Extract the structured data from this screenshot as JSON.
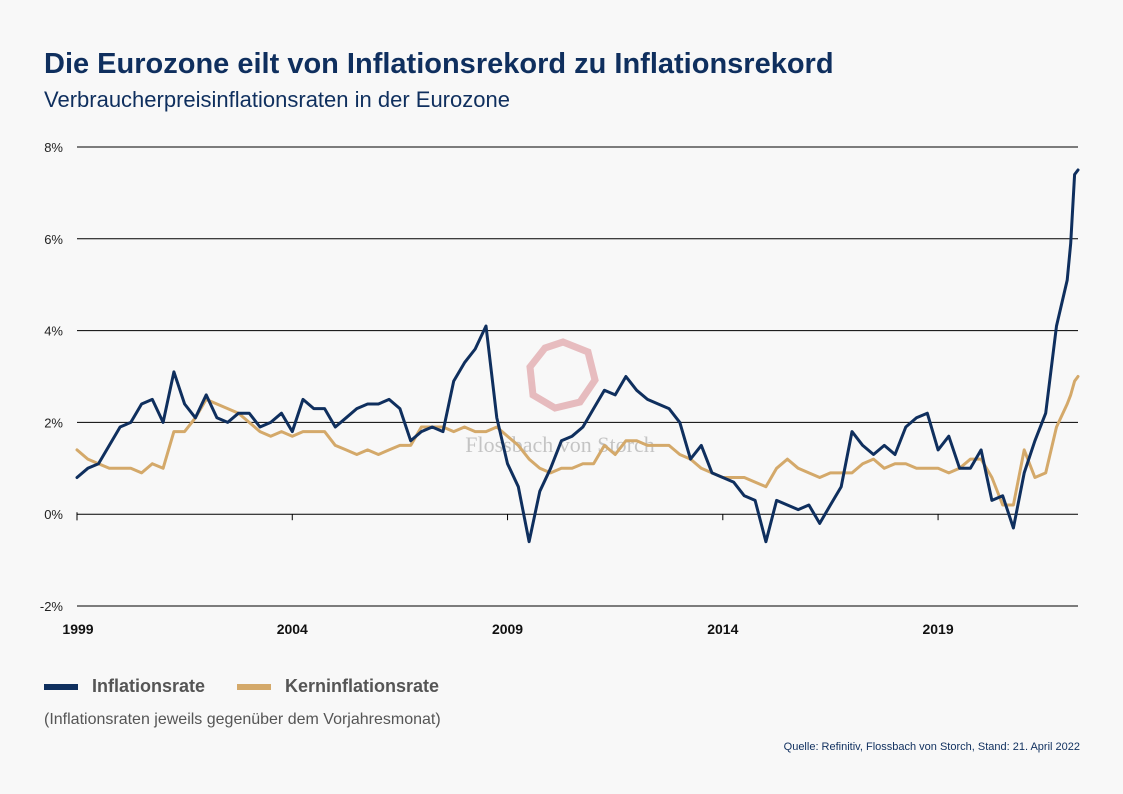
{
  "title": "Die Eurozone eilt von Inflationsrekord zu Inflationsrekord",
  "subtitle": "Verbraucherpreisinflationsraten in der Eurozone",
  "watermark": "Flossbach von Storch",
  "note": "(Inflationsraten jeweils gegenüber dem Vorjahresmonat)",
  "source": "Quelle: Refinitiv, Flossbach von Storch, Stand: 21. April 2022",
  "colors": {
    "headline": "#0f2f5e",
    "inflation": "#0f2f5e",
    "core": "#d4a96a",
    "grid": "#000000",
    "watermark": "#d98a8f"
  },
  "chart_data": {
    "type": "line",
    "title": "Verbraucherpreisinflationsraten in der Eurozone",
    "xlabel": "",
    "ylabel": "",
    "xlim": [
      1999.0,
      2022.25
    ],
    "ylim": [
      -2,
      8
    ],
    "yticks": [
      -2,
      0,
      2,
      4,
      6,
      8
    ],
    "ytick_labels": [
      "-2%",
      "0%",
      "2%",
      "4%",
      "6%",
      "8%"
    ],
    "xticks": [
      1999,
      2004,
      2009,
      2014,
      2019
    ],
    "xtick_labels": [
      "1999",
      "2004",
      "2009",
      "2014",
      "2019"
    ],
    "legend": "bottom-left",
    "series": [
      {
        "name": "Inflationsrate",
        "color": "#0f2f5e",
        "x": [
          1999.0,
          1999.25,
          1999.5,
          1999.75,
          2000.0,
          2000.25,
          2000.5,
          2000.75,
          2001.0,
          2001.25,
          2001.5,
          2001.75,
          2002.0,
          2002.25,
          2002.5,
          2002.75,
          2003.0,
          2003.25,
          2003.5,
          2003.75,
          2004.0,
          2004.25,
          2004.5,
          2004.75,
          2005.0,
          2005.25,
          2005.5,
          2005.75,
          2006.0,
          2006.25,
          2006.5,
          2006.75,
          2007.0,
          2007.25,
          2007.5,
          2007.75,
          2008.0,
          2008.25,
          2008.5,
          2008.75,
          2009.0,
          2009.25,
          2009.5,
          2009.75,
          2010.0,
          2010.25,
          2010.5,
          2010.75,
          2011.0,
          2011.25,
          2011.5,
          2011.75,
          2012.0,
          2012.25,
          2012.5,
          2012.75,
          2013.0,
          2013.25,
          2013.5,
          2013.75,
          2014.0,
          2014.25,
          2014.5,
          2014.75,
          2015.0,
          2015.25,
          2015.5,
          2015.75,
          2016.0,
          2016.25,
          2016.5,
          2016.75,
          2017.0,
          2017.25,
          2017.5,
          2017.75,
          2018.0,
          2018.25,
          2018.5,
          2018.75,
          2019.0,
          2019.25,
          2019.5,
          2019.75,
          2020.0,
          2020.25,
          2020.5,
          2020.75,
          2021.0,
          2021.25,
          2021.5,
          2021.75,
          2022.0,
          2022.08,
          2022.17,
          2022.25
        ],
        "values": [
          0.8,
          1.0,
          1.1,
          1.5,
          1.9,
          2.0,
          2.4,
          2.5,
          2.0,
          3.1,
          2.4,
          2.1,
          2.6,
          2.1,
          2.0,
          2.2,
          2.2,
          1.9,
          2.0,
          2.2,
          1.8,
          2.5,
          2.3,
          2.3,
          1.9,
          2.1,
          2.3,
          2.4,
          2.4,
          2.5,
          2.3,
          1.6,
          1.8,
          1.9,
          1.8,
          2.9,
          3.3,
          3.6,
          4.1,
          2.1,
          1.1,
          0.6,
          -0.6,
          0.5,
          1.0,
          1.6,
          1.7,
          1.9,
          2.3,
          2.7,
          2.6,
          3.0,
          2.7,
          2.5,
          2.4,
          2.3,
          2.0,
          1.2,
          1.5,
          0.9,
          0.8,
          0.7,
          0.4,
          0.3,
          -0.6,
          0.3,
          0.2,
          0.1,
          0.2,
          -0.2,
          0.2,
          0.6,
          1.8,
          1.5,
          1.3,
          1.5,
          1.3,
          1.9,
          2.1,
          2.2,
          1.4,
          1.7,
          1.0,
          1.0,
          1.4,
          0.3,
          0.4,
          -0.3,
          0.9,
          1.6,
          2.2,
          4.1,
          5.1,
          5.9,
          7.4,
          7.5
        ]
      },
      {
        "name": "Kerninflationsrate",
        "color": "#d4a96a",
        "x": [
          1999.0,
          1999.25,
          1999.5,
          1999.75,
          2000.0,
          2000.25,
          2000.5,
          2000.75,
          2001.0,
          2001.25,
          2001.5,
          2001.75,
          2002.0,
          2002.25,
          2002.5,
          2002.75,
          2003.0,
          2003.25,
          2003.5,
          2003.75,
          2004.0,
          2004.25,
          2004.5,
          2004.75,
          2005.0,
          2005.25,
          2005.5,
          2005.75,
          2006.0,
          2006.25,
          2006.5,
          2006.75,
          2007.0,
          2007.25,
          2007.5,
          2007.75,
          2008.0,
          2008.25,
          2008.5,
          2008.75,
          2009.0,
          2009.25,
          2009.5,
          2009.75,
          2010.0,
          2010.25,
          2010.5,
          2010.75,
          2011.0,
          2011.25,
          2011.5,
          2011.75,
          2012.0,
          2012.25,
          2012.5,
          2012.75,
          2013.0,
          2013.25,
          2013.5,
          2013.75,
          2014.0,
          2014.25,
          2014.5,
          2014.75,
          2015.0,
          2015.25,
          2015.5,
          2015.75,
          2016.0,
          2016.25,
          2016.5,
          2016.75,
          2017.0,
          2017.25,
          2017.5,
          2017.75,
          2018.0,
          2018.25,
          2018.5,
          2018.75,
          2019.0,
          2019.25,
          2019.5,
          2019.75,
          2020.0,
          2020.25,
          2020.5,
          2020.75,
          2021.0,
          2021.25,
          2021.5,
          2021.75,
          2022.0,
          2022.08,
          2022.17,
          2022.25
        ],
        "values": [
          1.4,
          1.2,
          1.1,
          1.0,
          1.0,
          1.0,
          0.9,
          1.1,
          1.0,
          1.8,
          1.8,
          2.1,
          2.5,
          2.4,
          2.3,
          2.2,
          2.0,
          1.8,
          1.7,
          1.8,
          1.7,
          1.8,
          1.8,
          1.8,
          1.5,
          1.4,
          1.3,
          1.4,
          1.3,
          1.4,
          1.5,
          1.5,
          1.9,
          1.9,
          1.9,
          1.8,
          1.9,
          1.8,
          1.8,
          1.9,
          1.7,
          1.5,
          1.2,
          1.0,
          0.9,
          1.0,
          1.0,
          1.1,
          1.1,
          1.5,
          1.3,
          1.6,
          1.6,
          1.5,
          1.5,
          1.5,
          1.3,
          1.2,
          1.0,
          0.9,
          0.8,
          0.8,
          0.8,
          0.7,
          0.6,
          1.0,
          1.2,
          1.0,
          0.9,
          0.8,
          0.9,
          0.9,
          0.9,
          1.1,
          1.2,
          1.0,
          1.1,
          1.1,
          1.0,
          1.0,
          1.0,
          0.9,
          1.0,
          1.2,
          1.2,
          0.8,
          0.2,
          0.2,
          1.4,
          0.8,
          0.9,
          1.9,
          2.4,
          2.6,
          2.9,
          3.0
        ]
      }
    ]
  }
}
